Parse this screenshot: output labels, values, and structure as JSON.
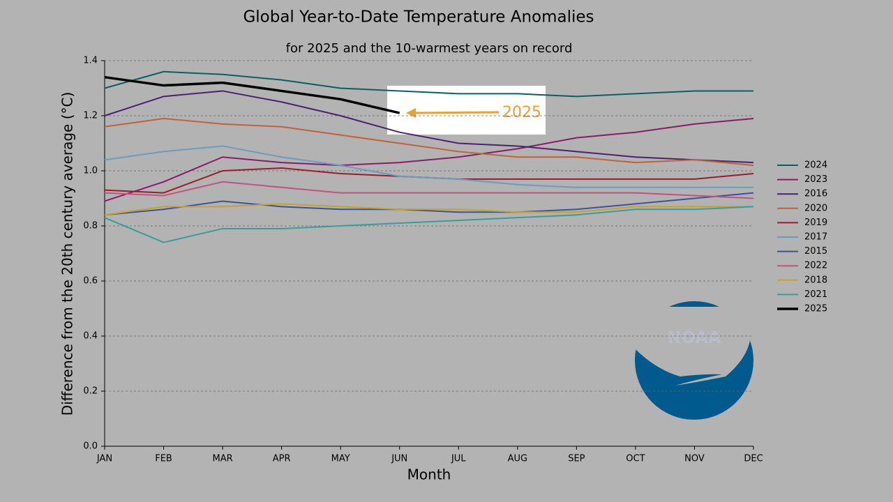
{
  "chart_data": {
    "type": "line",
    "title": "Global Year-to-Date Temperature Anomalies",
    "subtitle": "for 2025 and the 10-warmest years on record",
    "xlabel": "Month",
    "ylabel": "Difference from the 20th century average (°C)",
    "categories": [
      "JAN",
      "FEB",
      "MAR",
      "APR",
      "MAY",
      "JUN",
      "JUL",
      "AUG",
      "SEP",
      "OCT",
      "NOV",
      "DEC"
    ],
    "ylim": [
      0,
      1.4
    ],
    "yticks": [
      {
        "value": 0,
        "label": "0.0"
      },
      0.2,
      0.4,
      0.6,
      0.8,
      {
        "value": 1,
        "label": "1.0"
      },
      1.2,
      1.4
    ],
    "grid": true,
    "legend": "right",
    "series": [
      {
        "name": "2024",
        "color": "#0b5f60",
        "values": [
          1.3,
          1.36,
          1.35,
          1.33,
          1.3,
          1.29,
          1.28,
          1.28,
          1.27,
          1.28,
          1.29,
          1.29
        ]
      },
      {
        "name": "2023",
        "color": "#8c1a6c",
        "values": [
          0.89,
          0.96,
          1.05,
          1.03,
          1.02,
          1.03,
          1.05,
          1.08,
          1.12,
          1.14,
          1.17,
          1.19
        ]
      },
      {
        "name": "2016",
        "color": "#4a2270",
        "values": [
          1.2,
          1.27,
          1.29,
          1.25,
          1.2,
          1.14,
          1.1,
          1.09,
          1.07,
          1.05,
          1.04,
          1.03
        ]
      },
      {
        "name": "2020",
        "color": "#c2623a",
        "values": [
          1.16,
          1.19,
          1.17,
          1.16,
          1.13,
          1.1,
          1.07,
          1.05,
          1.05,
          1.03,
          1.04,
          1.02
        ]
      },
      {
        "name": "2019",
        "color": "#9e1a2c",
        "values": [
          0.93,
          0.92,
          1.0,
          1.01,
          0.99,
          0.98,
          0.97,
          0.97,
          0.97,
          0.97,
          0.97,
          0.99
        ]
      },
      {
        "name": "2017",
        "color": "#6a9cc2",
        "values": [
          1.04,
          1.07,
          1.09,
          1.05,
          1.02,
          0.98,
          0.97,
          0.95,
          0.94,
          0.94,
          0.94,
          0.94
        ]
      },
      {
        "name": "2015",
        "color": "#3a52a2",
        "values": [
          0.84,
          0.86,
          0.89,
          0.87,
          0.86,
          0.86,
          0.85,
          0.85,
          0.86,
          0.88,
          0.9,
          0.92
        ]
      },
      {
        "name": "2022",
        "color": "#c25282",
        "values": [
          0.92,
          0.91,
          0.96,
          0.94,
          0.92,
          0.92,
          0.92,
          0.92,
          0.92,
          0.92,
          0.91,
          0.9
        ]
      },
      {
        "name": "2018",
        "color": "#c9a222",
        "values": [
          0.84,
          0.87,
          0.87,
          0.88,
          0.87,
          0.86,
          0.86,
          0.85,
          0.85,
          0.87,
          0.87,
          0.87
        ]
      },
      {
        "name": "2021",
        "color": "#3a9c9c",
        "values": [
          0.83,
          0.74,
          0.79,
          0.79,
          0.8,
          0.81,
          0.82,
          0.83,
          0.84,
          0.86,
          0.86,
          0.87
        ]
      },
      {
        "name": "2025",
        "color": "#000000",
        "values": [
          1.34,
          1.31,
          1.32,
          1.29,
          1.26,
          1.21,
          null,
          null,
          null,
          null,
          null,
          null
        ]
      }
    ],
    "annotation": "2025",
    "logo_text": "NOAA"
  }
}
